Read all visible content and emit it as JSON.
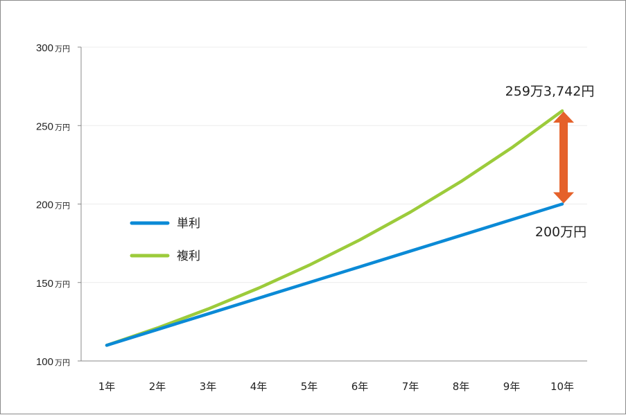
{
  "chart_data": {
    "type": "line",
    "categories": [
      "1年",
      "2年",
      "3年",
      "4年",
      "5年",
      "6年",
      "7年",
      "8年",
      "9年",
      "10年"
    ],
    "y_ticks": [
      {
        "value": 100,
        "num": "100",
        "unit": "万円"
      },
      {
        "value": 150,
        "num": "150",
        "unit": "万円"
      },
      {
        "value": 200,
        "num": "200",
        "unit": "万円"
      },
      {
        "value": 250,
        "num": "250",
        "unit": "万円"
      },
      {
        "value": 300,
        "num": "300",
        "unit": "万円"
      }
    ],
    "ylim": [
      100,
      300
    ],
    "grid": true,
    "legend_position": "left-middle",
    "series": [
      {
        "name": "単利",
        "color": "#0b8ad6",
        "values": [
          110,
          120,
          130,
          140,
          150,
          160,
          170,
          180,
          190,
          200
        ]
      },
      {
        "name": "複利",
        "color": "#9ccb3b",
        "values": [
          110,
          121,
          133.1,
          146.41,
          161.05,
          177.16,
          194.87,
          214.36,
          235.79,
          259.3742
        ]
      }
    ],
    "annotations": {
      "compound_end": "259万3,742円",
      "simple_end": "200万円"
    },
    "arrow_color": "#e5612a"
  }
}
